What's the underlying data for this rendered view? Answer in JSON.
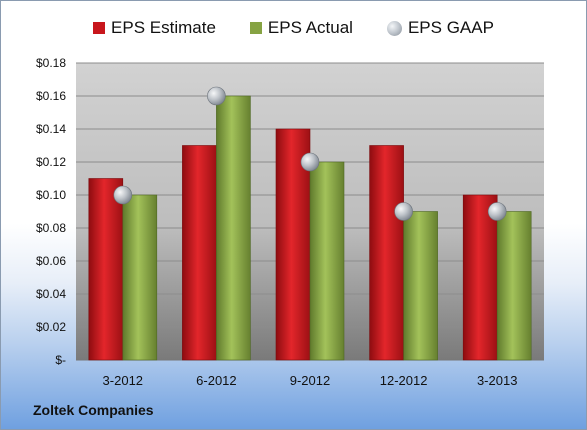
{
  "chart_data": {
    "type": "bar",
    "categories": [
      "3-2012",
      "6-2012",
      "9-2012",
      "12-2012",
      "3-2013"
    ],
    "series": [
      {
        "name": "EPS Estimate",
        "values": [
          0.11,
          0.13,
          0.14,
          0.13,
          0.1
        ],
        "color": "#c8161c"
      },
      {
        "name": "EPS Actual",
        "values": [
          0.1,
          0.16,
          0.12,
          0.09,
          0.09
        ],
        "color": "#86a343"
      },
      {
        "name": "EPS GAAP",
        "values": [
          0.1,
          0.16,
          0.12,
          0.09,
          0.09
        ],
        "color": "#b0b6bd",
        "marker": "sphere"
      }
    ],
    "ylim": [
      0,
      0.18
    ],
    "yticks": [
      0,
      0.02,
      0.04,
      0.06,
      0.08,
      0.1,
      0.12,
      0.14,
      0.16,
      0.18
    ],
    "ytick_labels": [
      "$-",
      "$0.02",
      "$0.04",
      "$0.06",
      "$0.08",
      "$0.10",
      "$0.12",
      "$0.14",
      "$0.16",
      "$0.18"
    ],
    "grid": true,
    "legend_position": "top"
  },
  "footer": {
    "company": "Zoltek Companies"
  }
}
